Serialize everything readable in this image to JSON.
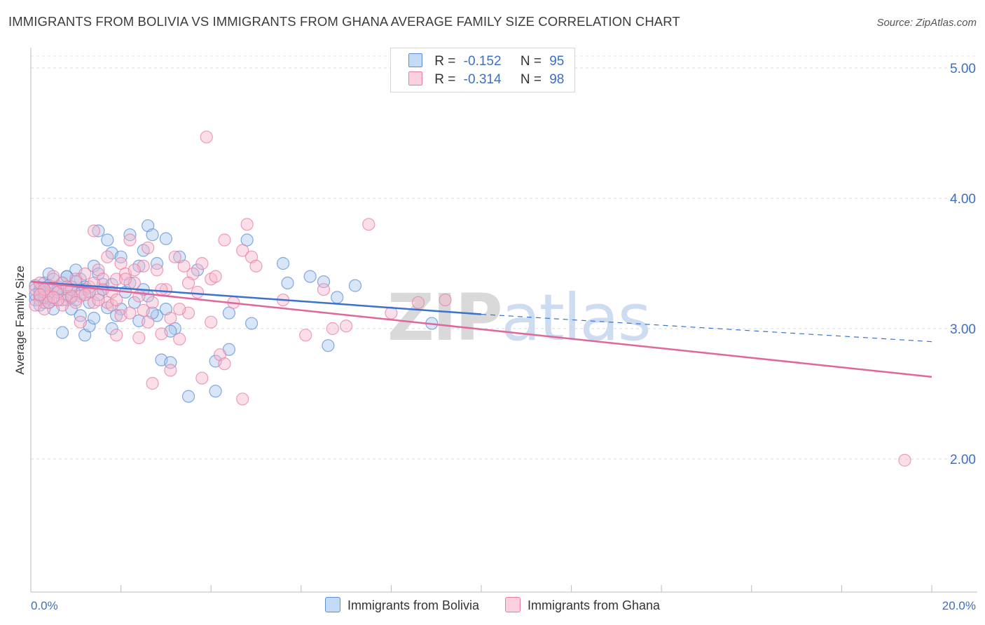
{
  "header": {
    "title": "IMMIGRANTS FROM BOLIVIA VS IMMIGRANTS FROM GHANA AVERAGE FAMILY SIZE CORRELATION CHART",
    "source": "Source: ZipAtlas.com"
  },
  "watermark": {
    "zip": "ZIP",
    "atlas": "atlas"
  },
  "legend": {
    "rows": [
      {
        "r_label": "R =",
        "r_value": "-0.152",
        "n_label": "N =",
        "n_value": "95",
        "color": "#a8c8f0"
      },
      {
        "r_label": "R =",
        "r_value": "-0.314",
        "n_label": "N =",
        "n_value": "98",
        "color": "#f6b8cc"
      }
    ]
  },
  "chart_data": {
    "type": "scatter",
    "title": "IMMIGRANTS FROM BOLIVIA VS IMMIGRANTS FROM GHANA AVERAGE FAMILY SIZE CORRELATION CHART",
    "xlabel": "",
    "ylabel": "Average Family Size",
    "xlim": [
      0,
      20
    ],
    "ylim": [
      1.0,
      5.1
    ],
    "x_tick_labels": [
      "0.0%",
      "20.0%"
    ],
    "y_ticks": [
      2.0,
      3.0,
      4.0,
      5.0
    ],
    "y_tick_labels": [
      "2.00",
      "3.00",
      "4.00",
      "5.00"
    ],
    "grid": true,
    "legend_position": "top-center",
    "series": [
      {
        "name": "Immigrants from Bolivia",
        "color": "#a8c8f0",
        "edge": "#5e8fd6",
        "trend": {
          "x0": 0,
          "y0": 3.36,
          "x1": 10,
          "y1": 3.11,
          "dash_to_x": 20,
          "dash_to_y": 2.9
        },
        "points": [
          [
            0.1,
            3.33
          ],
          [
            0.2,
            3.28
          ],
          [
            0.1,
            3.22
          ],
          [
            0.3,
            3.35
          ],
          [
            0.2,
            3.25
          ],
          [
            0.4,
            3.42
          ],
          [
            0.3,
            3.3
          ],
          [
            0.5,
            3.38
          ],
          [
            0.2,
            3.18
          ],
          [
            0.6,
            3.32
          ],
          [
            0.4,
            3.27
          ],
          [
            0.7,
            3.35
          ],
          [
            0.5,
            3.22
          ],
          [
            0.8,
            3.4
          ],
          [
            0.6,
            3.28
          ],
          [
            0.9,
            3.3
          ],
          [
            0.3,
            3.2
          ],
          [
            1.0,
            3.45
          ],
          [
            0.8,
            3.25
          ],
          [
            1.1,
            3.38
          ],
          [
            0.9,
            3.15
          ],
          [
            1.2,
            3.32
          ],
          [
            1.0,
            3.22
          ],
          [
            1.3,
            3.28
          ],
          [
            1.4,
            3.48
          ],
          [
            1.5,
            3.42
          ],
          [
            1.3,
            3.2
          ],
          [
            1.6,
            3.34
          ],
          [
            1.7,
            3.68
          ],
          [
            1.5,
            3.75
          ],
          [
            1.8,
            3.58
          ],
          [
            2.0,
            3.55
          ],
          [
            2.2,
            3.72
          ],
          [
            2.4,
            3.48
          ],
          [
            2.5,
            3.6
          ],
          [
            2.6,
            3.79
          ],
          [
            2.7,
            3.72
          ],
          [
            2.8,
            3.5
          ],
          [
            3.0,
            3.69
          ],
          [
            3.3,
            3.55
          ],
          [
            3.7,
            3.45
          ],
          [
            4.8,
            3.68
          ],
          [
            5.6,
            3.5
          ],
          [
            6.2,
            3.4
          ],
          [
            6.5,
            3.36
          ],
          [
            7.2,
            3.33
          ],
          [
            5.7,
            3.35
          ],
          [
            4.4,
            3.12
          ],
          [
            4.9,
            3.04
          ],
          [
            3.2,
            3.0
          ],
          [
            2.9,
            2.76
          ],
          [
            3.1,
            2.74
          ],
          [
            4.1,
            2.75
          ],
          [
            4.4,
            2.84
          ],
          [
            4.1,
            2.52
          ],
          [
            3.5,
            2.48
          ],
          [
            6.6,
            2.87
          ],
          [
            6.8,
            3.24
          ],
          [
            8.9,
            3.04
          ],
          [
            0.7,
            2.97
          ],
          [
            1.2,
            2.95
          ],
          [
            1.8,
            3.0
          ],
          [
            2.4,
            3.06
          ],
          [
            2.8,
            3.1
          ],
          [
            3.1,
            2.98
          ],
          [
            2.0,
            3.15
          ],
          [
            2.3,
            3.2
          ],
          [
            1.1,
            3.1
          ],
          [
            1.3,
            3.02
          ],
          [
            0.9,
            3.24
          ],
          [
            1.7,
            3.16
          ],
          [
            2.1,
            3.28
          ],
          [
            2.6,
            3.25
          ],
          [
            1.4,
            3.08
          ],
          [
            0.5,
            3.15
          ],
          [
            0.6,
            3.3
          ],
          [
            0.4,
            3.33
          ],
          [
            0.2,
            3.3
          ],
          [
            0.1,
            3.26
          ],
          [
            0.3,
            3.24
          ],
          [
            1.9,
            3.1
          ],
          [
            2.2,
            3.35
          ],
          [
            2.7,
            3.12
          ],
          [
            3.0,
            3.15
          ],
          [
            1.6,
            3.3
          ],
          [
            1.8,
            3.34
          ],
          [
            0.8,
            3.4
          ],
          [
            1.0,
            3.36
          ],
          [
            1.2,
            3.3
          ],
          [
            1.5,
            3.26
          ],
          [
            2.5,
            3.3
          ],
          [
            0.7,
            3.22
          ],
          [
            0.9,
            3.32
          ],
          [
            1.1,
            3.27
          ],
          [
            0.4,
            3.2
          ]
        ]
      },
      {
        "name": "Immigrants from Ghana",
        "color": "#f6b8cc",
        "edge": "#e87fa3",
        "trend": {
          "x0": 0,
          "y0": 3.36,
          "x1": 20,
          "y1": 2.63
        },
        "points": [
          [
            0.1,
            3.3
          ],
          [
            0.2,
            3.22
          ],
          [
            0.1,
            3.18
          ],
          [
            0.3,
            3.28
          ],
          [
            0.2,
            3.35
          ],
          [
            0.4,
            3.25
          ],
          [
            0.5,
            3.32
          ],
          [
            0.3,
            3.15
          ],
          [
            0.6,
            3.28
          ],
          [
            0.7,
            3.35
          ],
          [
            0.8,
            3.22
          ],
          [
            0.9,
            3.3
          ],
          [
            1.0,
            3.38
          ],
          [
            1.1,
            3.25
          ],
          [
            1.2,
            3.42
          ],
          [
            1.3,
            3.32
          ],
          [
            1.4,
            3.2
          ],
          [
            1.5,
            3.45
          ],
          [
            1.6,
            3.3
          ],
          [
            1.7,
            3.55
          ],
          [
            1.8,
            3.28
          ],
          [
            1.9,
            3.38
          ],
          [
            2.0,
            3.5
          ],
          [
            2.1,
            3.42
          ],
          [
            2.2,
            3.68
          ],
          [
            2.3,
            3.35
          ],
          [
            2.5,
            3.48
          ],
          [
            2.6,
            3.62
          ],
          [
            2.8,
            3.45
          ],
          [
            3.0,
            3.3
          ],
          [
            3.2,
            3.55
          ],
          [
            3.4,
            3.48
          ],
          [
            3.6,
            3.42
          ],
          [
            3.8,
            3.5
          ],
          [
            4.0,
            3.38
          ],
          [
            4.3,
            3.68
          ],
          [
            4.7,
            3.6
          ],
          [
            4.9,
            3.55
          ],
          [
            4.8,
            3.8
          ],
          [
            5.0,
            3.48
          ],
          [
            3.9,
            4.47
          ],
          [
            3.5,
            3.12
          ],
          [
            4.0,
            3.05
          ],
          [
            4.5,
            3.2
          ],
          [
            5.6,
            3.22
          ],
          [
            6.5,
            3.3
          ],
          [
            6.7,
            3.0
          ],
          [
            7.0,
            3.02
          ],
          [
            8.0,
            3.12
          ],
          [
            8.6,
            3.2
          ],
          [
            9.2,
            3.22
          ],
          [
            7.5,
            3.8
          ],
          [
            6.1,
            2.95
          ],
          [
            3.3,
            2.92
          ],
          [
            2.9,
            2.96
          ],
          [
            2.4,
            2.93
          ],
          [
            4.2,
            2.8
          ],
          [
            4.3,
            2.73
          ],
          [
            3.1,
            2.68
          ],
          [
            2.7,
            2.58
          ],
          [
            3.8,
            2.62
          ],
          [
            4.7,
            2.46
          ],
          [
            1.4,
            3.75
          ],
          [
            1.7,
            3.2
          ],
          [
            2.0,
            3.1
          ],
          [
            1.9,
            2.95
          ],
          [
            2.2,
            3.12
          ],
          [
            2.6,
            3.05
          ],
          [
            3.1,
            3.08
          ],
          [
            0.5,
            3.4
          ],
          [
            0.7,
            3.18
          ],
          [
            0.9,
            3.25
          ],
          [
            1.1,
            3.05
          ],
          [
            1.3,
            3.28
          ],
          [
            1.5,
            3.22
          ],
          [
            1.8,
            3.18
          ],
          [
            2.1,
            3.38
          ],
          [
            2.4,
            3.25
          ],
          [
            2.9,
            3.3
          ],
          [
            3.5,
            3.35
          ],
          [
            3.7,
            3.28
          ],
          [
            4.1,
            3.4
          ],
          [
            0.3,
            3.3
          ],
          [
            0.4,
            3.2
          ],
          [
            0.6,
            3.22
          ],
          [
            0.8,
            3.32
          ],
          [
            1.0,
            3.2
          ],
          [
            1.2,
            3.26
          ],
          [
            1.6,
            3.38
          ],
          [
            2.3,
            3.45
          ],
          [
            2.7,
            3.2
          ],
          [
            3.3,
            3.15
          ],
          [
            0.2,
            3.26
          ],
          [
            0.5,
            3.24
          ],
          [
            1.4,
            3.35
          ],
          [
            1.9,
            3.22
          ],
          [
            2.5,
            3.14
          ],
          [
            19.4,
            1.99
          ]
        ]
      }
    ]
  },
  "bottom_legend": {
    "items": [
      {
        "label": "Immigrants from Bolivia",
        "color": "#a8c8f0",
        "edge": "#5e8fd6"
      },
      {
        "label": "Immigrants from Ghana",
        "color": "#f6b8cc",
        "edge": "#e87fa3"
      }
    ]
  }
}
